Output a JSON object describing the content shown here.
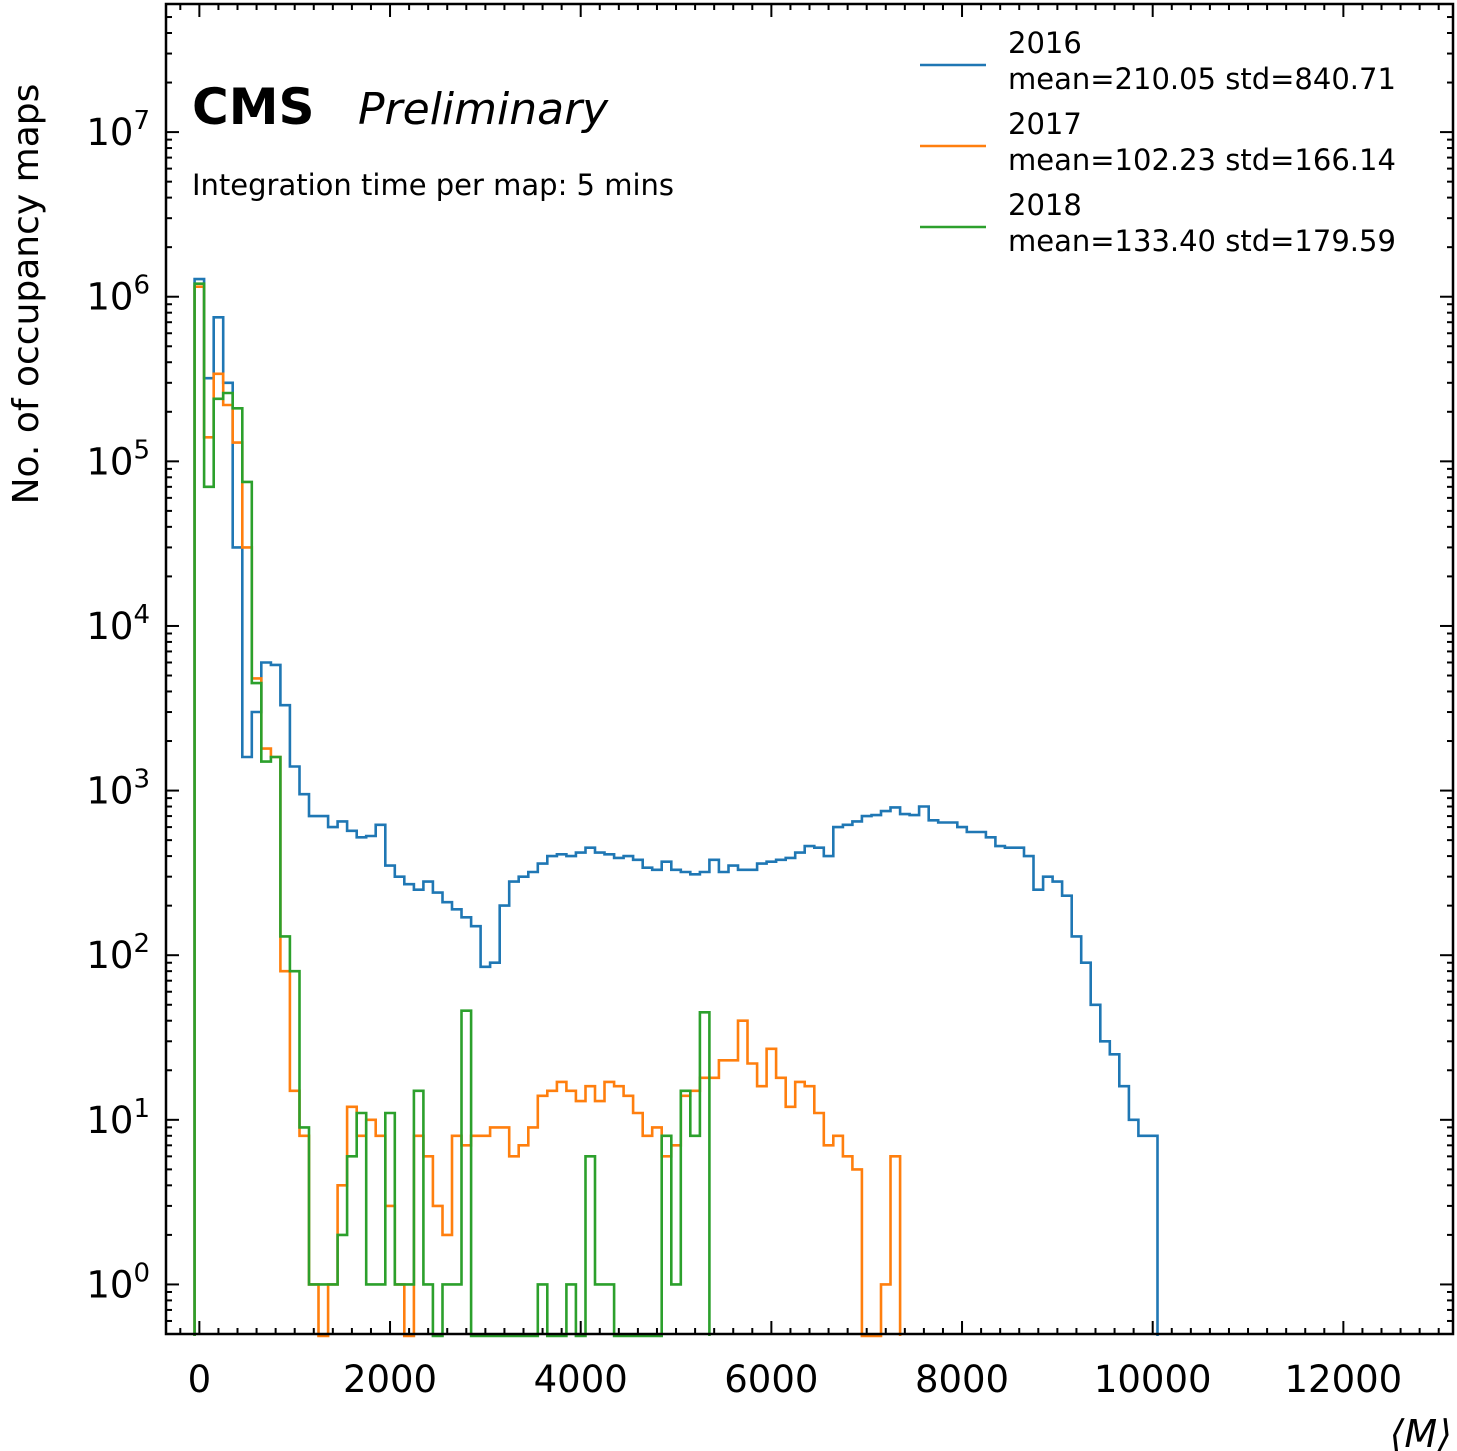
{
  "chart_data": {
    "type": "histogram",
    "title": "",
    "experiment_label": "CMS",
    "status_label": "Preliminary",
    "annotation": "Integration time per map: 5 mins",
    "xlabel": "⟨M⟩",
    "ylabel": "No. of occupancy maps",
    "xlim": [
      -350,
      13150
    ],
    "ylim": [
      0.5,
      60000000
    ],
    "y_scale": "log",
    "x_ticks": [
      0,
      2000,
      4000,
      6000,
      8000,
      10000,
      12000
    ],
    "x_tick_labels": [
      "0",
      "2000",
      "4000",
      "6000",
      "8000",
      "10000",
      "12000"
    ],
    "y_ticks": [
      1,
      10,
      100,
      1000,
      10000,
      100000,
      1000000,
      10000000
    ],
    "y_tick_labels": [
      {
        "base": "10",
        "exp": "0"
      },
      {
        "base": "10",
        "exp": "1"
      },
      {
        "base": "10",
        "exp": "2"
      },
      {
        "base": "10",
        "exp": "3"
      },
      {
        "base": "10",
        "exp": "4"
      },
      {
        "base": "10",
        "exp": "5"
      },
      {
        "base": "10",
        "exp": "6"
      },
      {
        "base": "10",
        "exp": "7"
      }
    ],
    "grid": false,
    "legend_position": "top-right",
    "bin_start": -50,
    "bin_width": 100,
    "series": [
      {
        "name": "2016",
        "stats": "mean=210.05 std=840.71",
        "color": "#1f77b4",
        "counts": [
          1280000,
          320000,
          750000,
          300000,
          30000,
          1600,
          3000,
          6000,
          5800,
          3300,
          1400,
          950,
          700,
          700,
          600,
          650,
          570,
          520,
          530,
          620,
          350,
          300,
          270,
          250,
          280,
          240,
          210,
          190,
          170,
          150,
          85,
          90,
          200,
          280,
          300,
          320,
          360,
          400,
          410,
          400,
          420,
          450,
          420,
          410,
          390,
          400,
          380,
          340,
          330,
          370,
          330,
          320,
          310,
          320,
          380,
          320,
          350,
          330,
          330,
          360,
          370,
          380,
          390,
          420,
          460,
          450,
          400,
          600,
          620,
          650,
          700,
          710,
          750,
          790,
          720,
          710,
          800,
          660,
          640,
          640,
          600,
          560,
          560,
          520,
          460,
          450,
          450,
          400,
          250,
          300,
          280,
          230,
          130,
          90,
          50,
          30,
          25,
          16,
          10,
          8,
          8
        ]
      },
      {
        "name": "2017",
        "stats": "mean=102.23 std=166.14",
        "color": "#ff7f0e",
        "counts": [
          1150000,
          140000,
          340000,
          220000,
          130000,
          30000,
          4800,
          1800,
          1600,
          80,
          15,
          8,
          1,
          0,
          1,
          4,
          12,
          8,
          10,
          8,
          3,
          1,
          0,
          8,
          6,
          3,
          2,
          8,
          7,
          8,
          8,
          9,
          9,
          6,
          7,
          9,
          14,
          15,
          17,
          15,
          13,
          16,
          13,
          17,
          16,
          14,
          11,
          8,
          9,
          6,
          7,
          14,
          15,
          18,
          18,
          23,
          23,
          40,
          22,
          16,
          27,
          18,
          12,
          17,
          16,
          11,
          7,
          8,
          6,
          5,
          0,
          0,
          1,
          6
        ]
      },
      {
        "name": "2018",
        "stats": "mean=133.40 std=179.59",
        "color": "#2ca02c",
        "counts": [
          1200000,
          70000,
          240000,
          260000,
          210000,
          75000,
          4500,
          1500,
          1600,
          130,
          80,
          9,
          1,
          1,
          1,
          2,
          6,
          11,
          1,
          1,
          11,
          1,
          1,
          15,
          1,
          0,
          1,
          1,
          46,
          0,
          0,
          0,
          0,
          0,
          0,
          0,
          1,
          0,
          0,
          1,
          0,
          6,
          1,
          1,
          0,
          0,
          0,
          0,
          0,
          8,
          1,
          15,
          8,
          45
        ]
      }
    ]
  }
}
